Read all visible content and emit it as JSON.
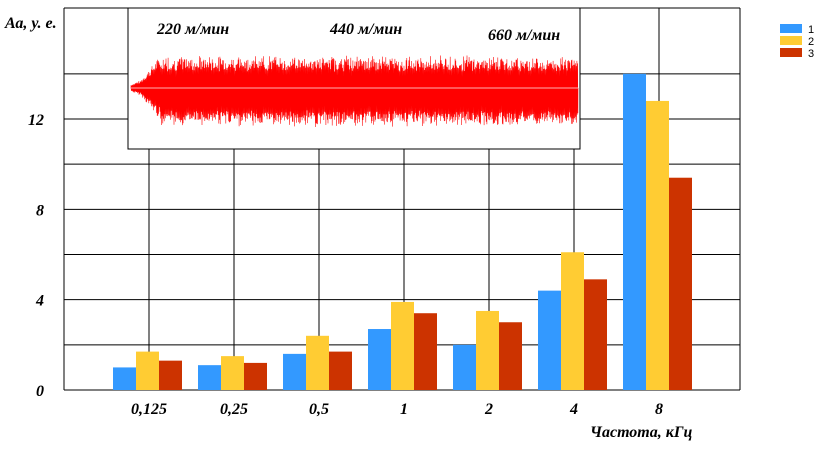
{
  "chart_data": {
    "type": "bar",
    "ylabel": "Аа, у. е.",
    "xlabel": "Частота, кГц",
    "categories": [
      "0,125",
      "0,25",
      "0,5",
      "1",
      "2",
      "4",
      "8"
    ],
    "series": [
      {
        "name": "1",
        "color": "#3399ff",
        "values": [
          1.0,
          1.1,
          1.6,
          2.7,
          2.0,
          4.4,
          14.0
        ]
      },
      {
        "name": "2",
        "color": "#ffcc33",
        "values": [
          1.7,
          1.5,
          2.4,
          3.9,
          3.5,
          6.1,
          12.8
        ]
      },
      {
        "name": "3",
        "color": "#cc3300",
        "values": [
          1.3,
          1.2,
          1.7,
          3.4,
          3.0,
          4.9,
          9.4
        ]
      }
    ],
    "ylim": [
      0,
      15
    ],
    "yticks": [
      "0",
      "4",
      "8",
      "12"
    ],
    "grid": true,
    "legend_position": "top-right",
    "inset": {
      "description": "red signal waveform",
      "color": "#ff0000",
      "labels": [
        "220 м/мин",
        "440 м/мин",
        "660 м/мин"
      ]
    }
  }
}
